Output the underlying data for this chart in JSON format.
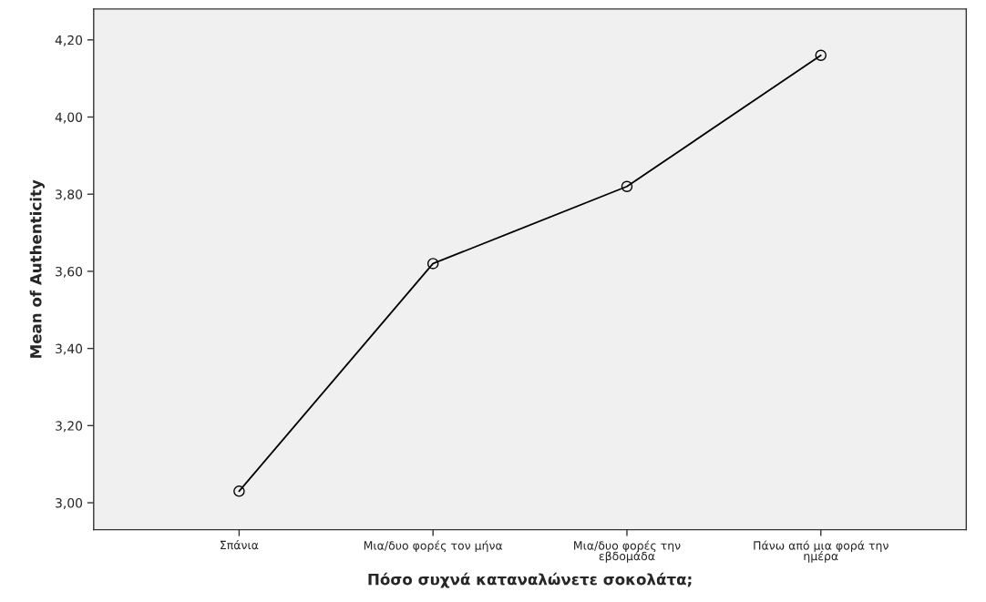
{
  "chart_data": {
    "type": "line",
    "xlabel": "Πόσο συχνά καταναλώνετε σοκολάτα;",
    "ylabel": "Mean of Authenticity",
    "categories": [
      "Σπάνια",
      "Μια/δυο φορές τον μήνα",
      "Μια/δυο φορές την\nεβδομάδα",
      "Πάνω από μια φορά την\nημέρα"
    ],
    "series": [
      {
        "color": "#000000",
        "values": [
          3.03,
          3.62,
          3.82,
          4.16
        ]
      }
    ],
    "ylim": [
      2.93,
      4.28
    ],
    "yticks": [
      {
        "value": 3.0,
        "label": "3,00"
      },
      {
        "value": 3.2,
        "label": "3,20"
      },
      {
        "value": 3.4,
        "label": "3,40"
      },
      {
        "value": 3.6,
        "label": "3,60"
      },
      {
        "value": 3.8,
        "label": "3,80"
      },
      {
        "value": 4.0,
        "label": "4,00"
      },
      {
        "value": 4.2,
        "label": "4,20"
      }
    ],
    "grid": false,
    "marker": "circle",
    "line_style": "solid",
    "legend": false
  }
}
